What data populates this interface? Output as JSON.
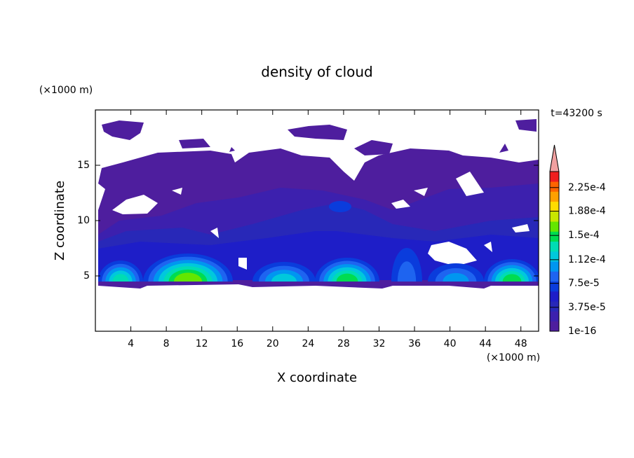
{
  "chart_data": {
    "type": "contour",
    "title": "density of cloud",
    "time_label": "t=43200 s",
    "x_label": "X coordinate",
    "x_unit": "(×1000 m)",
    "y_label": "Z coordinate",
    "y_unit": "(×1000 m)",
    "xlim": [
      0,
      50
    ],
    "xticks": [
      4,
      8,
      12,
      16,
      20,
      24,
      28,
      32,
      36,
      40,
      44,
      48
    ],
    "ylim": [
      0,
      20
    ],
    "yticks": [
      5,
      10,
      15
    ],
    "colorbar": {
      "lim": [
        1e-16,
        0.00025
      ],
      "ticks": [
        1e-16,
        {
          "value": 3.75e-05,
          "label": "3.75e-5"
        },
        {
          "value": 7.5e-05,
          "label": "7.5e-5"
        },
        {
          "value": 0.000112,
          "label": "1.12e-4"
        },
        {
          "value": 0.00015,
          "label": "1.5e-4"
        },
        {
          "value": 0.000188,
          "label": "1.88e-4"
        },
        {
          "value": 0.000225,
          "label": "2.25e-4"
        }
      ],
      "colors": [
        "#4e1e9e",
        "#3c20ae",
        "#2828b8",
        "#1e1ec8",
        "#0a3cdc",
        "#1e64f0",
        "#0096f0",
        "#00c8dc",
        "#00dcb4",
        "#00dc50",
        "#64e600",
        "#c8e600",
        "#ffdc00",
        "#ffa000",
        "#ff6400",
        "#f01e1e"
      ],
      "extend_color": "#f0a0a0"
    }
  }
}
